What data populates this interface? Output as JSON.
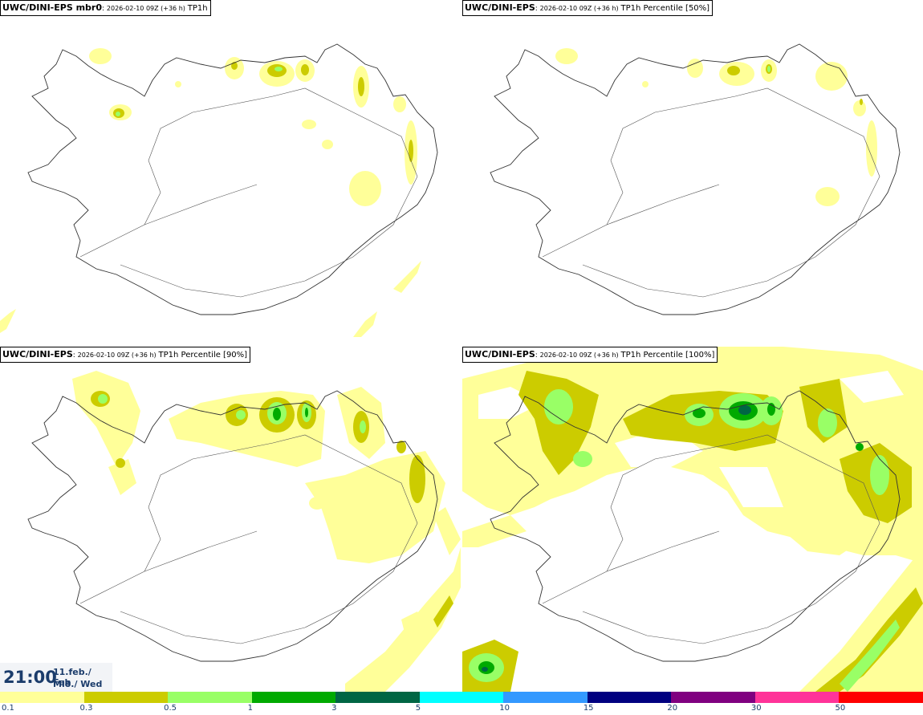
{
  "panels": [
    {
      "model": "UWC/DINI-EPS mbr0",
      "run": "2026-02-10 09Z (+36 h)",
      "variable": "TP1h"
    },
    {
      "model": "UWC/DINI-EPS",
      "run": "2026-02-10 09Z (+36 h)",
      "variable": "TP1h Percentile [50%]"
    },
    {
      "model": "UWC/DINI-EPS",
      "run": "2026-02-10 09Z (+36 h)",
      "variable": "TP1h Percentile [90%]"
    },
    {
      "model": "UWC/DINI-EPS",
      "run": "2026-02-10 09Z (+36 h)",
      "variable": "TP1h Percentile [100%]"
    }
  ],
  "time": {
    "clock": "21:00",
    "date": "11.feb./ Feb",
    "weekday": "Mið./ Wed"
  },
  "legend": {
    "colors": [
      "#ffff99",
      "#cccc00",
      "#99ff66",
      "#00aa00",
      "#006644",
      "#00ffff",
      "#3399ff",
      "#000080",
      "#800080",
      "#ff3399",
      "#ff0000"
    ],
    "ticks": [
      "0.1",
      "0.3",
      "0.5",
      "1",
      "3",
      "5",
      "10",
      "15",
      "20",
      "30",
      "50"
    ]
  },
  "palette": {
    "light": "#ffff99",
    "olive": "#cccc00",
    "lightgreen": "#99ff66",
    "green": "#00aa00",
    "dark": "#006644"
  }
}
